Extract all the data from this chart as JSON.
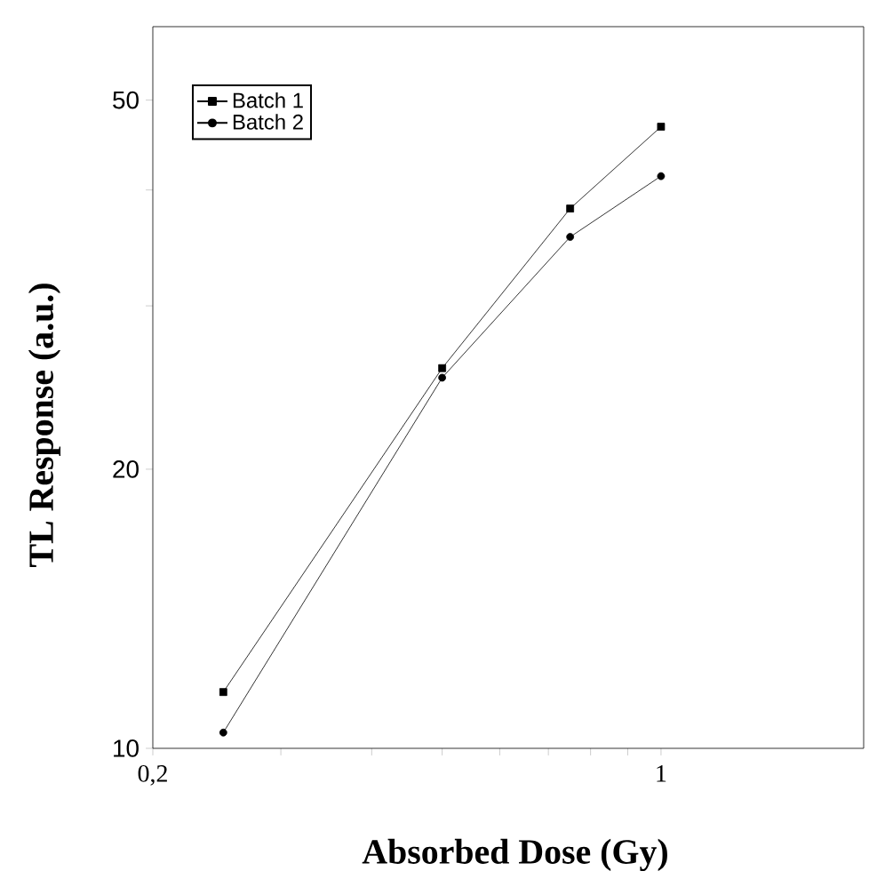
{
  "chart_data": {
    "type": "line",
    "xlabel": "Absorbed Dose (Gy)",
    "ylabel": "TL Response  (a.u.)",
    "x": [
      0.25,
      0.5,
      0.75,
      1.0
    ],
    "series": [
      {
        "name": "Batch 1",
        "color": "#000000",
        "marker": "square",
        "values": [
          11.5,
          25.7,
          38.2,
          46.8
        ]
      },
      {
        "name": "Batch 2",
        "color": "#000000",
        "marker": "circle",
        "values": [
          10.4,
          25.1,
          35.6,
          41.4
        ]
      }
    ],
    "log": "xy",
    "xlim": [
      0.2,
      1.9
    ],
    "ylim": [
      10,
      60
    ],
    "xticks": [
      {
        "value": 0.2,
        "label": "0,2"
      },
      {
        "value": 0.3,
        "label": null
      },
      {
        "value": 0.4,
        "label": null
      },
      {
        "value": 0.5,
        "label": null
      },
      {
        "value": 0.6,
        "label": null
      },
      {
        "value": 0.7,
        "label": null
      },
      {
        "value": 0.8,
        "label": null
      },
      {
        "value": 0.9,
        "label": null
      },
      1
    ],
    "yticks": [
      10,
      20,
      {
        "value": 30,
        "label": null
      },
      {
        "value": 40,
        "label": null
      },
      50
    ],
    "legend": "top left",
    "grid": false,
    "line_style": "solid"
  }
}
